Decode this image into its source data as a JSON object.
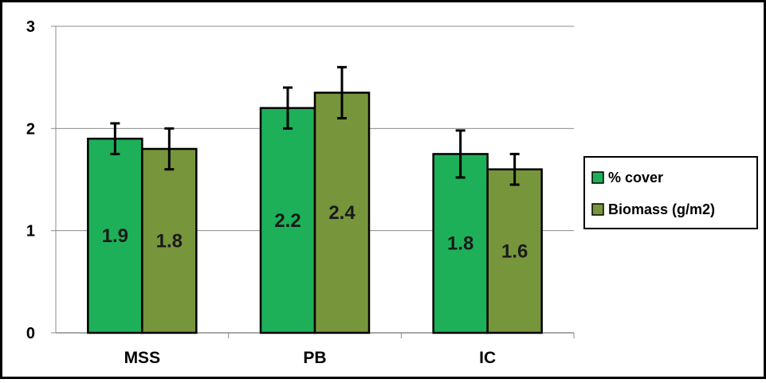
{
  "chart_data": {
    "type": "bar",
    "categories": [
      "MSS",
      "PB",
      "IC"
    ],
    "ylim": [
      0,
      3
    ],
    "yticks": [
      "0",
      "1",
      "2",
      "3"
    ],
    "grid": true,
    "legend_position": "right",
    "series": [
      {
        "name": "% cover",
        "color": "#1eb058",
        "values": [
          1.9,
          2.2,
          1.75
        ],
        "errors": [
          0.15,
          0.2,
          0.23
        ],
        "labels": [
          "1.9",
          "2.2",
          "1.8"
        ]
      },
      {
        "name": "Biomass (g/m2)",
        "color": "#77953a",
        "values": [
          1.8,
          2.35,
          1.6
        ],
        "errors": [
          0.2,
          0.25,
          0.15
        ],
        "labels": [
          "1.8",
          "2.4",
          "1.6"
        ]
      }
    ]
  }
}
